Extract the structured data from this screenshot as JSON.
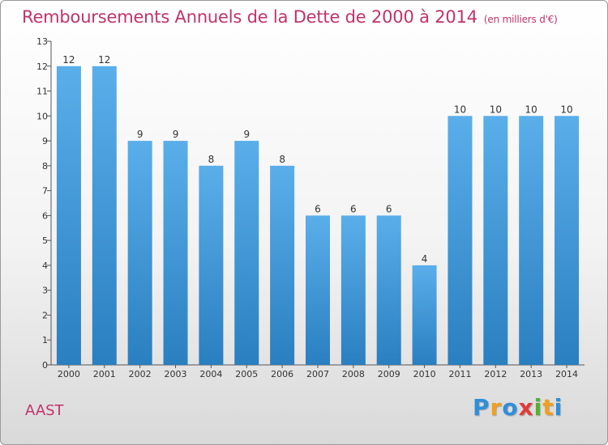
{
  "chart_data": {
    "type": "bar",
    "title": "Remboursements Annuels de la Dette de 2000 à 2014",
    "unit_note": "(en milliers d'€)",
    "categories": [
      "2000",
      "2001",
      "2002",
      "2003",
      "2004",
      "2005",
      "2006",
      "2007",
      "2008",
      "2009",
      "2010",
      "2011",
      "2012",
      "2013",
      "2014"
    ],
    "values": [
      12,
      12,
      9,
      9,
      8,
      9,
      8,
      6,
      6,
      6,
      4,
      10,
      10,
      10,
      10
    ],
    "ylim": [
      0,
      13
    ],
    "yticks": [
      0,
      1,
      2,
      3,
      4,
      5,
      6,
      7,
      8,
      9,
      10,
      11,
      12,
      13
    ],
    "grid": false,
    "legend": "none",
    "bar_color_top": "#5aaeea",
    "bar_color_bottom": "#2a7fc0"
  },
  "footer": {
    "commune": "AAST",
    "logo": "Proxiti"
  },
  "logo_letters": [
    {
      "ch": "P",
      "color": "#2f8fd8"
    },
    {
      "ch": "r",
      "color": "#f0a020"
    },
    {
      "ch": "o",
      "color": "#2f8fd8"
    },
    {
      "ch": "x",
      "color": "#e23b3b"
    },
    {
      "ch": "i",
      "color": "#55b030"
    },
    {
      "ch": "t",
      "color": "#f0a020"
    },
    {
      "ch": "i",
      "color": "#2f8fd8"
    }
  ]
}
